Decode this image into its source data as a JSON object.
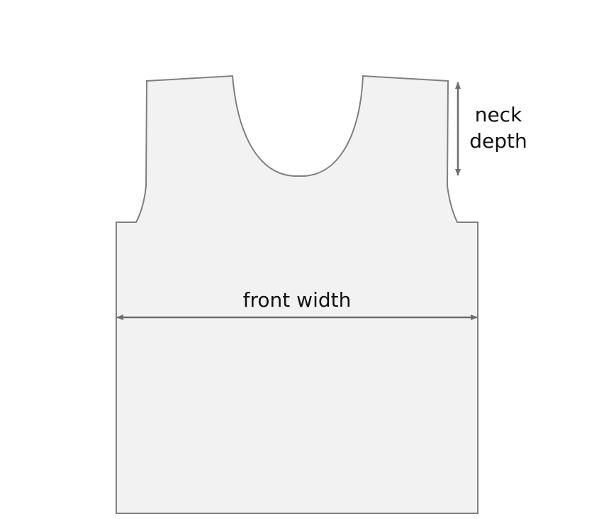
{
  "labels": {
    "neck_line1": "neck",
    "neck_line2": "depth",
    "front_width": "front width"
  },
  "colors": {
    "garment_fill": "#f2f2f2",
    "garment_stroke": "#808080",
    "arrow": "#6e6e6e",
    "text": "#111111"
  }
}
